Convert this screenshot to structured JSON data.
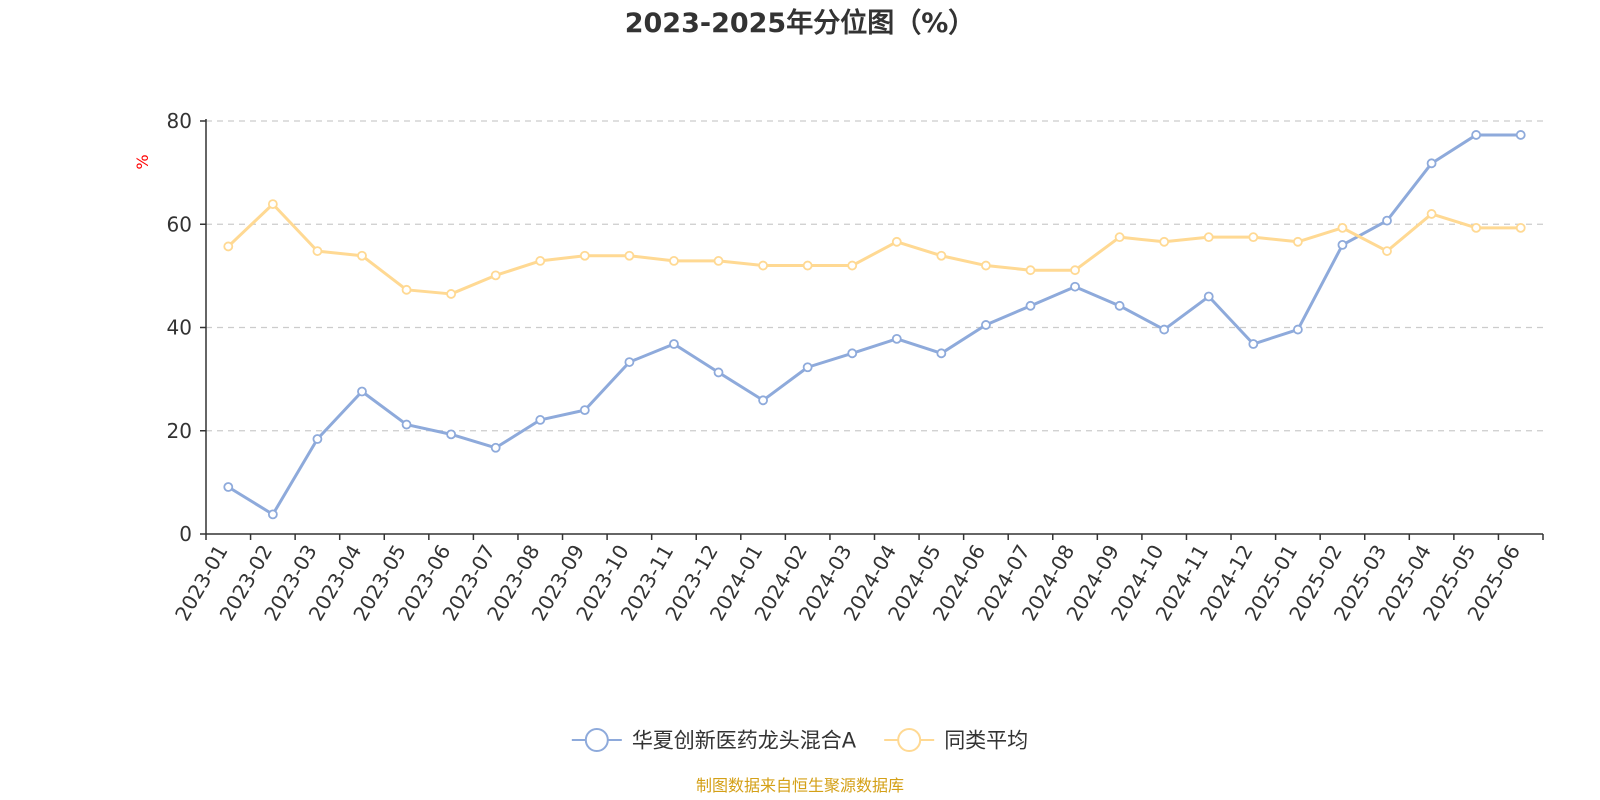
{
  "chart_data": {
    "type": "line",
    "title": "2023-2025年分位图（%）",
    "ylabel": "%",
    "ylim": [
      0,
      80
    ],
    "yticks": [
      0,
      20,
      40,
      60,
      80
    ],
    "grid": true,
    "legend_position": "bottom",
    "categories": [
      "2023-01",
      "2023-02",
      "2023-03",
      "2023-04",
      "2023-05",
      "2023-06",
      "2023-07",
      "2023-08",
      "2023-09",
      "2023-10",
      "2023-11",
      "2023-12",
      "2024-01",
      "2024-02",
      "2024-03",
      "2024-04",
      "2024-05",
      "2024-06",
      "2024-07",
      "2024-08",
      "2024-09",
      "2024-10",
      "2024-11",
      "2024-12",
      "2025-01",
      "2025-02",
      "2025-03",
      "2025-04",
      "2025-05",
      "2025-06"
    ],
    "series": [
      {
        "name": "华夏创新医药龙头混合A",
        "color": "#8eaadb",
        "values": [
          9.1,
          3.8,
          18.4,
          27.6,
          21.2,
          19.3,
          16.7,
          22.1,
          24.0,
          33.3,
          36.8,
          31.3,
          25.9,
          32.3,
          35.0,
          37.8,
          35.0,
          40.5,
          44.2,
          47.9,
          44.2,
          39.6,
          46.0,
          36.8,
          39.6,
          56.0,
          60.7,
          71.8,
          77.3,
          77.3
        ]
      },
      {
        "name": "同类平均",
        "color": "#ffd993",
        "values": [
          55.7,
          63.9,
          54.8,
          53.9,
          47.3,
          46.5,
          50.1,
          52.9,
          53.9,
          53.9,
          52.9,
          52.9,
          52.0,
          52.0,
          52.0,
          56.6,
          53.9,
          52.0,
          51.1,
          51.1,
          57.5,
          56.6,
          57.5,
          57.5,
          56.6,
          59.3,
          54.8,
          62.0,
          59.3,
          59.3
        ]
      }
    ]
  },
  "source_text": "制图数据来自恒生聚源数据库",
  "colors": {
    "axis": "#333333",
    "grid": "#cccccc",
    "title": "#333333",
    "ylabel": "#ff0000",
    "source": "#d4a017"
  }
}
